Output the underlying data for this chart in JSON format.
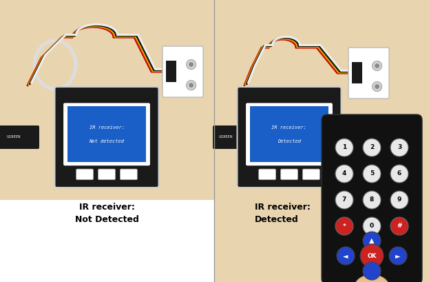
{
  "left_label_line1": "IR receiver:",
  "left_label_line2": "Not Detected",
  "right_label_line1": "IR receiver:",
  "right_label_line2": "Detected",
  "panel_bg": "#e8d5b0",
  "left_bottom_bg": "#ffffff",
  "right_bottom_bg": "#e8d5b0",
  "label_fontsize": 9,
  "screen_color": "#1a5fc8",
  "device_color": "#1a1a1a",
  "device_frame": "#cccccc",
  "wire_colors": [
    "#cc0000",
    "#ddaa00",
    "#111111",
    "#eeeeee"
  ],
  "remote_color": "#111111",
  "btn_white": "#e8e8e8",
  "btn_red": "#cc2222",
  "btn_blue": "#2244cc",
  "divider_color": "#999999"
}
